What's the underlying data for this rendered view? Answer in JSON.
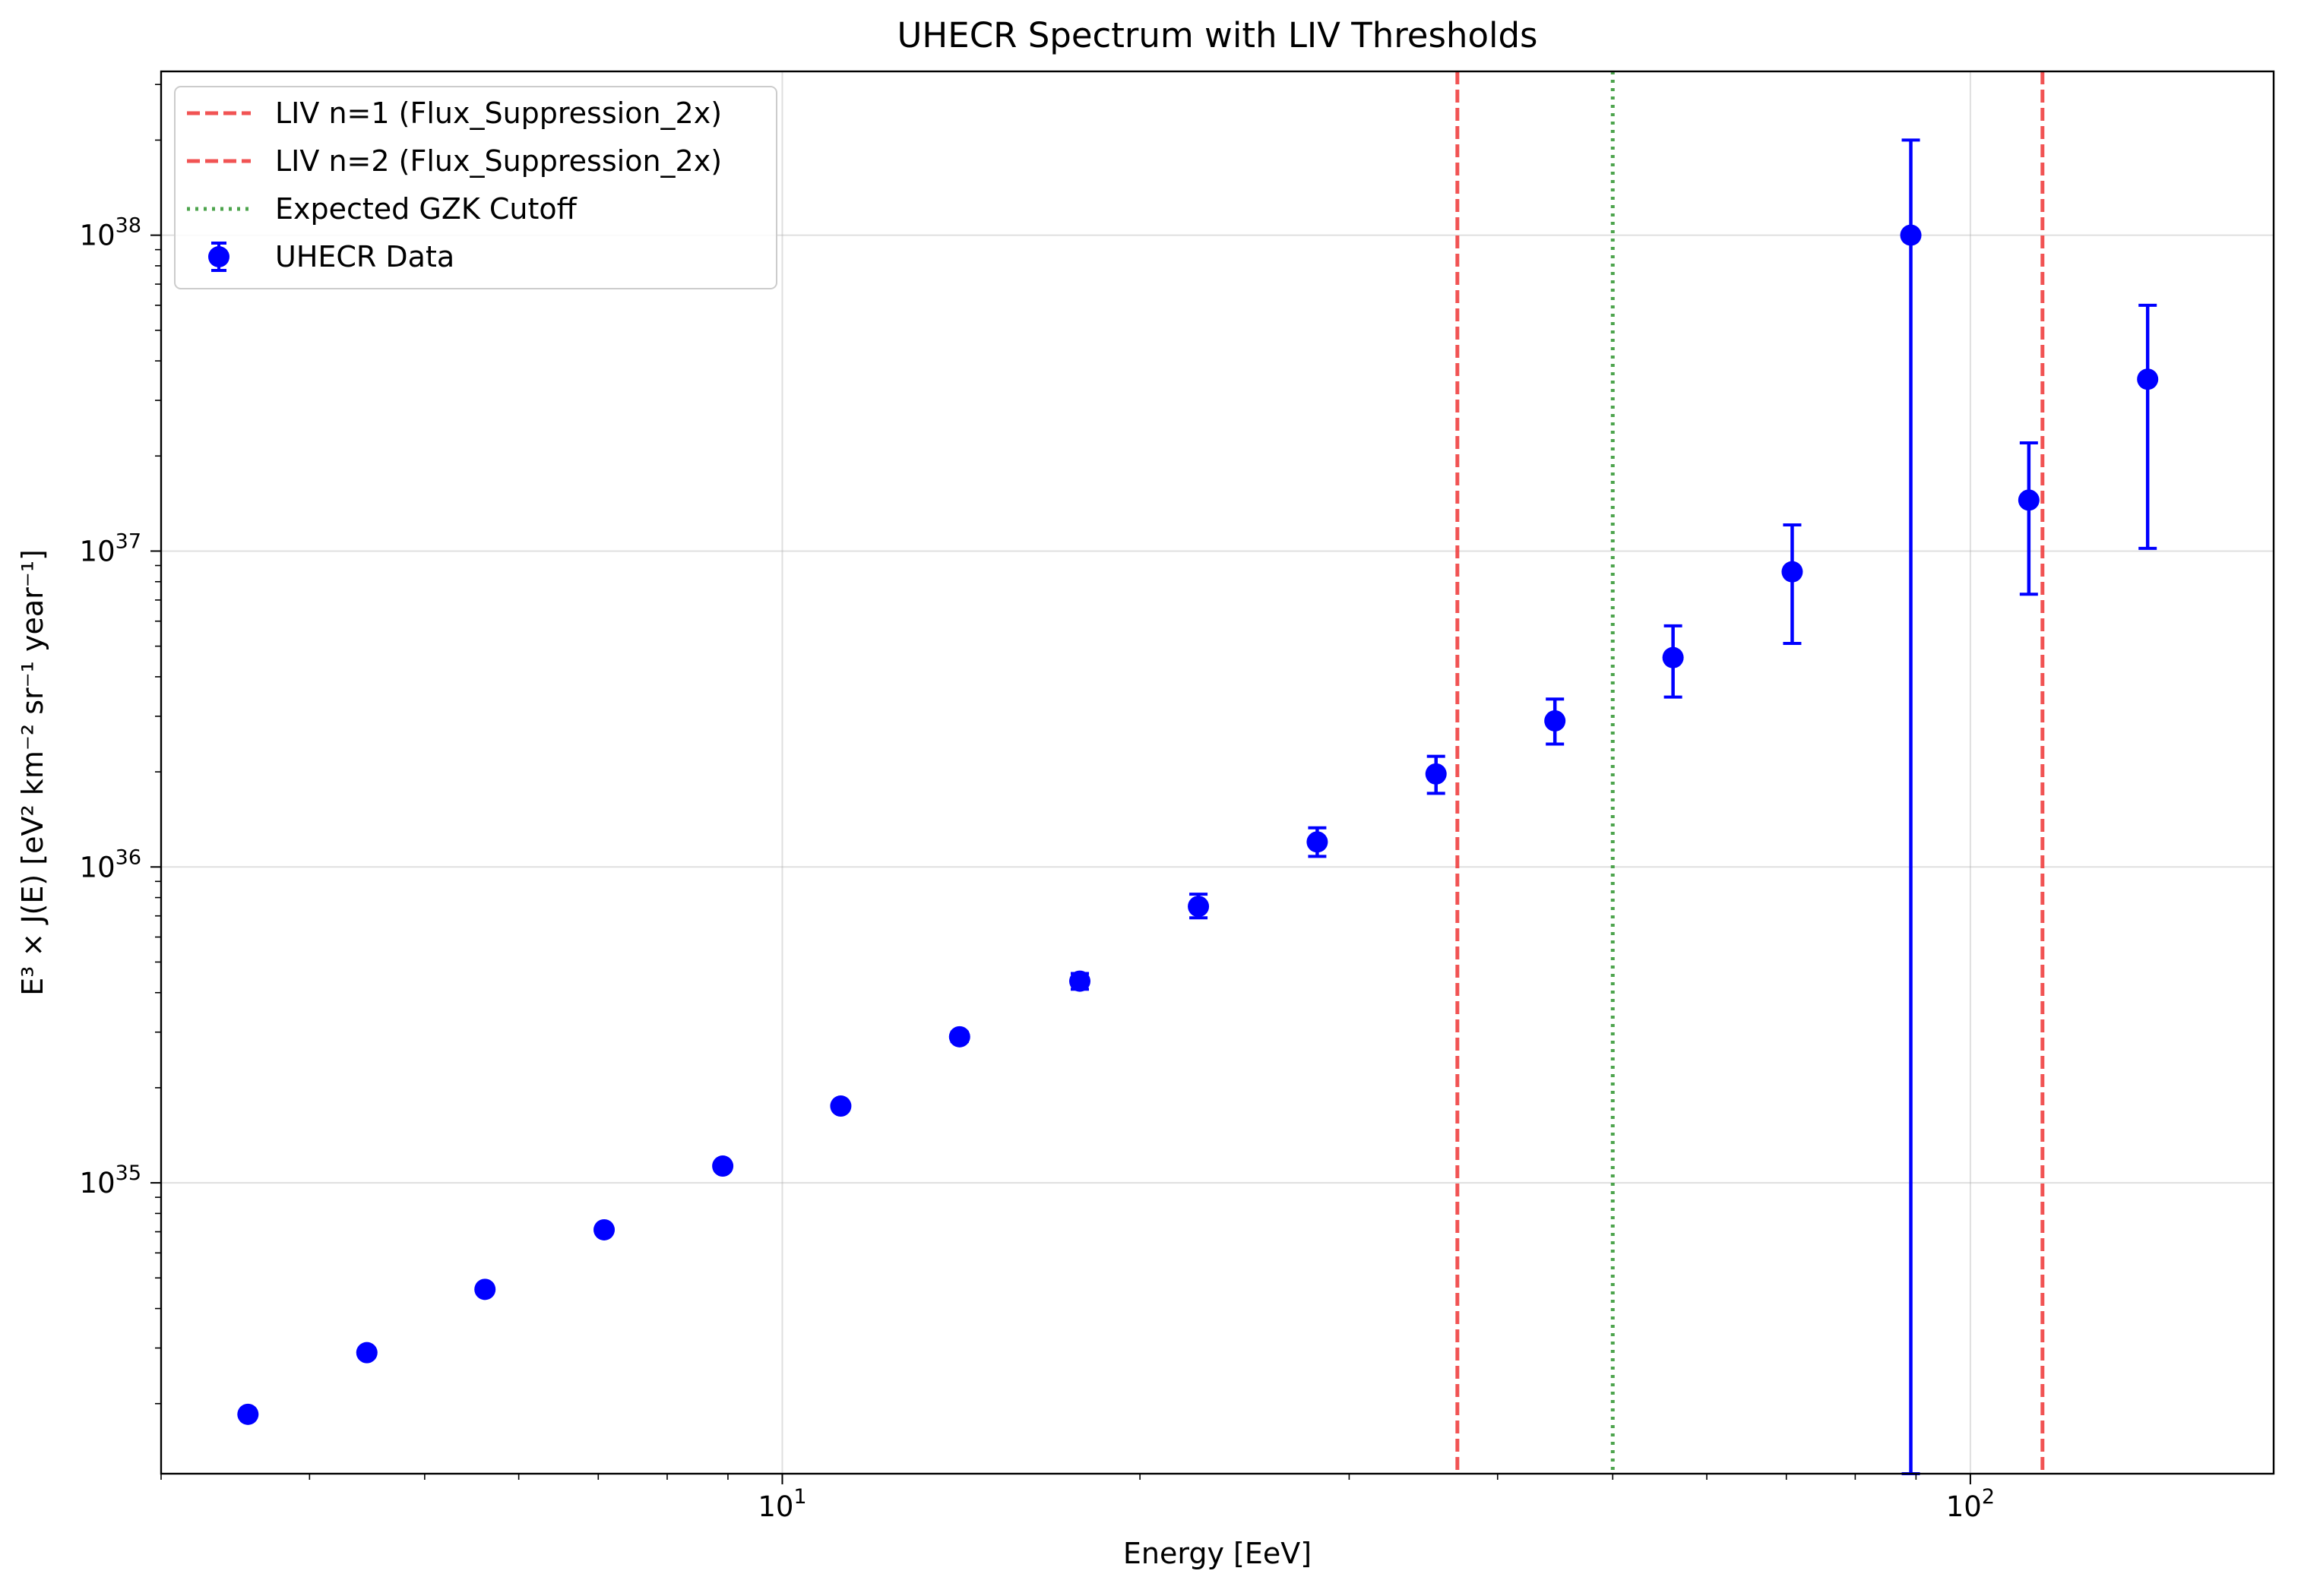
{
  "chart_data": {
    "type": "scatter",
    "title": "UHECR Spectrum with LIV Thresholds",
    "xlabel": "Energy [EeV]",
    "ylabel": "E³ × J(E) [eV² km⁻² sr⁻¹ year⁻¹]",
    "x_scale": "log",
    "y_scale": "log",
    "xlim": [
      3.0,
      180
    ],
    "ylim": [
      1.2e+34,
      3.3e+38
    ],
    "grid": true,
    "legend_position": "upper-left",
    "x_ticks": [
      {
        "value": 10,
        "base": "10",
        "exp": "1"
      },
      {
        "value": 100,
        "base": "10",
        "exp": "2"
      }
    ],
    "y_ticks": [
      {
        "value": 1e+35,
        "base": "10",
        "exp": "35"
      },
      {
        "value": 1e+36,
        "base": "10",
        "exp": "36"
      },
      {
        "value": 1e+37,
        "base": "10",
        "exp": "37"
      },
      {
        "value": 1e+38,
        "base": "10",
        "exp": "38"
      }
    ],
    "series": [
      {
        "name": "UHECR Data",
        "color": "#0000ff",
        "marker": "circle",
        "points": [
          {
            "x": 3.55,
            "y": 1.85e+34,
            "ylo": 1.85e+34,
            "yhi": 1.85e+34
          },
          {
            "x": 4.47,
            "y": 2.9e+34,
            "ylo": 2.9e+34,
            "yhi": 2.9e+34
          },
          {
            "x": 5.62,
            "y": 4.6e+34,
            "ylo": 4.6e+34,
            "yhi": 4.6e+34
          },
          {
            "x": 7.08,
            "y": 7.1e+34,
            "ylo": 7.1e+34,
            "yhi": 7.1e+34
          },
          {
            "x": 8.91,
            "y": 1.13e+35,
            "ylo": 1.13e+35,
            "yhi": 1.13e+35
          },
          {
            "x": 11.2,
            "y": 1.75e+35,
            "ylo": 1.75e+35,
            "yhi": 1.75e+35
          },
          {
            "x": 14.1,
            "y": 2.9e+35,
            "ylo": 2.8e+35,
            "yhi": 3e+35
          },
          {
            "x": 17.8,
            "y": 4.35e+35,
            "ylo": 4.1e+35,
            "yhi": 4.6e+35
          },
          {
            "x": 22.4,
            "y": 7.5e+35,
            "ylo": 6.9e+35,
            "yhi": 8.2e+35
          },
          {
            "x": 28.2,
            "y": 1.2e+36,
            "ylo": 1.08e+36,
            "yhi": 1.33e+36
          },
          {
            "x": 35.5,
            "y": 1.97e+36,
            "ylo": 1.71e+36,
            "yhi": 2.24e+36
          },
          {
            "x": 44.7,
            "y": 2.9e+36,
            "ylo": 2.45e+36,
            "yhi": 3.4e+36
          },
          {
            "x": 56.2,
            "y": 4.6e+36,
            "ylo": 3.45e+36,
            "yhi": 5.8e+36
          },
          {
            "x": 70.8,
            "y": 8.6e+36,
            "ylo": 5.1e+36,
            "yhi": 1.21e+37
          },
          {
            "x": 89.1,
            "y": 1e+38,
            "ylo": 1.2e+34,
            "yhi": 2e+38
          },
          {
            "x": 112,
            "y": 1.45e+37,
            "ylo": 7.3e+36,
            "yhi": 2.2e+37
          },
          {
            "x": 141,
            "y": 3.5e+37,
            "ylo": 1.02e+37,
            "yhi": 6e+37
          }
        ]
      }
    ],
    "vlines": [
      {
        "name": "LIV n=1 (Flux_Suppression_2x)",
        "x": 37.0,
        "color": "#f04040",
        "style": "dashed"
      },
      {
        "name": "LIV n=2 (Flux_Suppression_2x)",
        "x": 115.0,
        "color": "#f04040",
        "style": "dashed"
      },
      {
        "name": "Expected GZK Cutoff",
        "x": 50.0,
        "color": "#3a9a3a",
        "style": "dotted"
      }
    ],
    "legend": [
      {
        "label": "LIV n=1 (Flux_Suppression_2x)",
        "kind": "line",
        "color": "#f04040",
        "style": "dashed"
      },
      {
        "label": "LIV n=2 (Flux_Suppression_2x)",
        "kind": "line",
        "color": "#f04040",
        "style": "dashed"
      },
      {
        "label": "Expected GZK Cutoff",
        "kind": "line",
        "color": "#3a9a3a",
        "style": "dotted"
      },
      {
        "label": "UHECR Data",
        "kind": "errorbar",
        "color": "#0000ff",
        "style": "solid"
      }
    ]
  }
}
